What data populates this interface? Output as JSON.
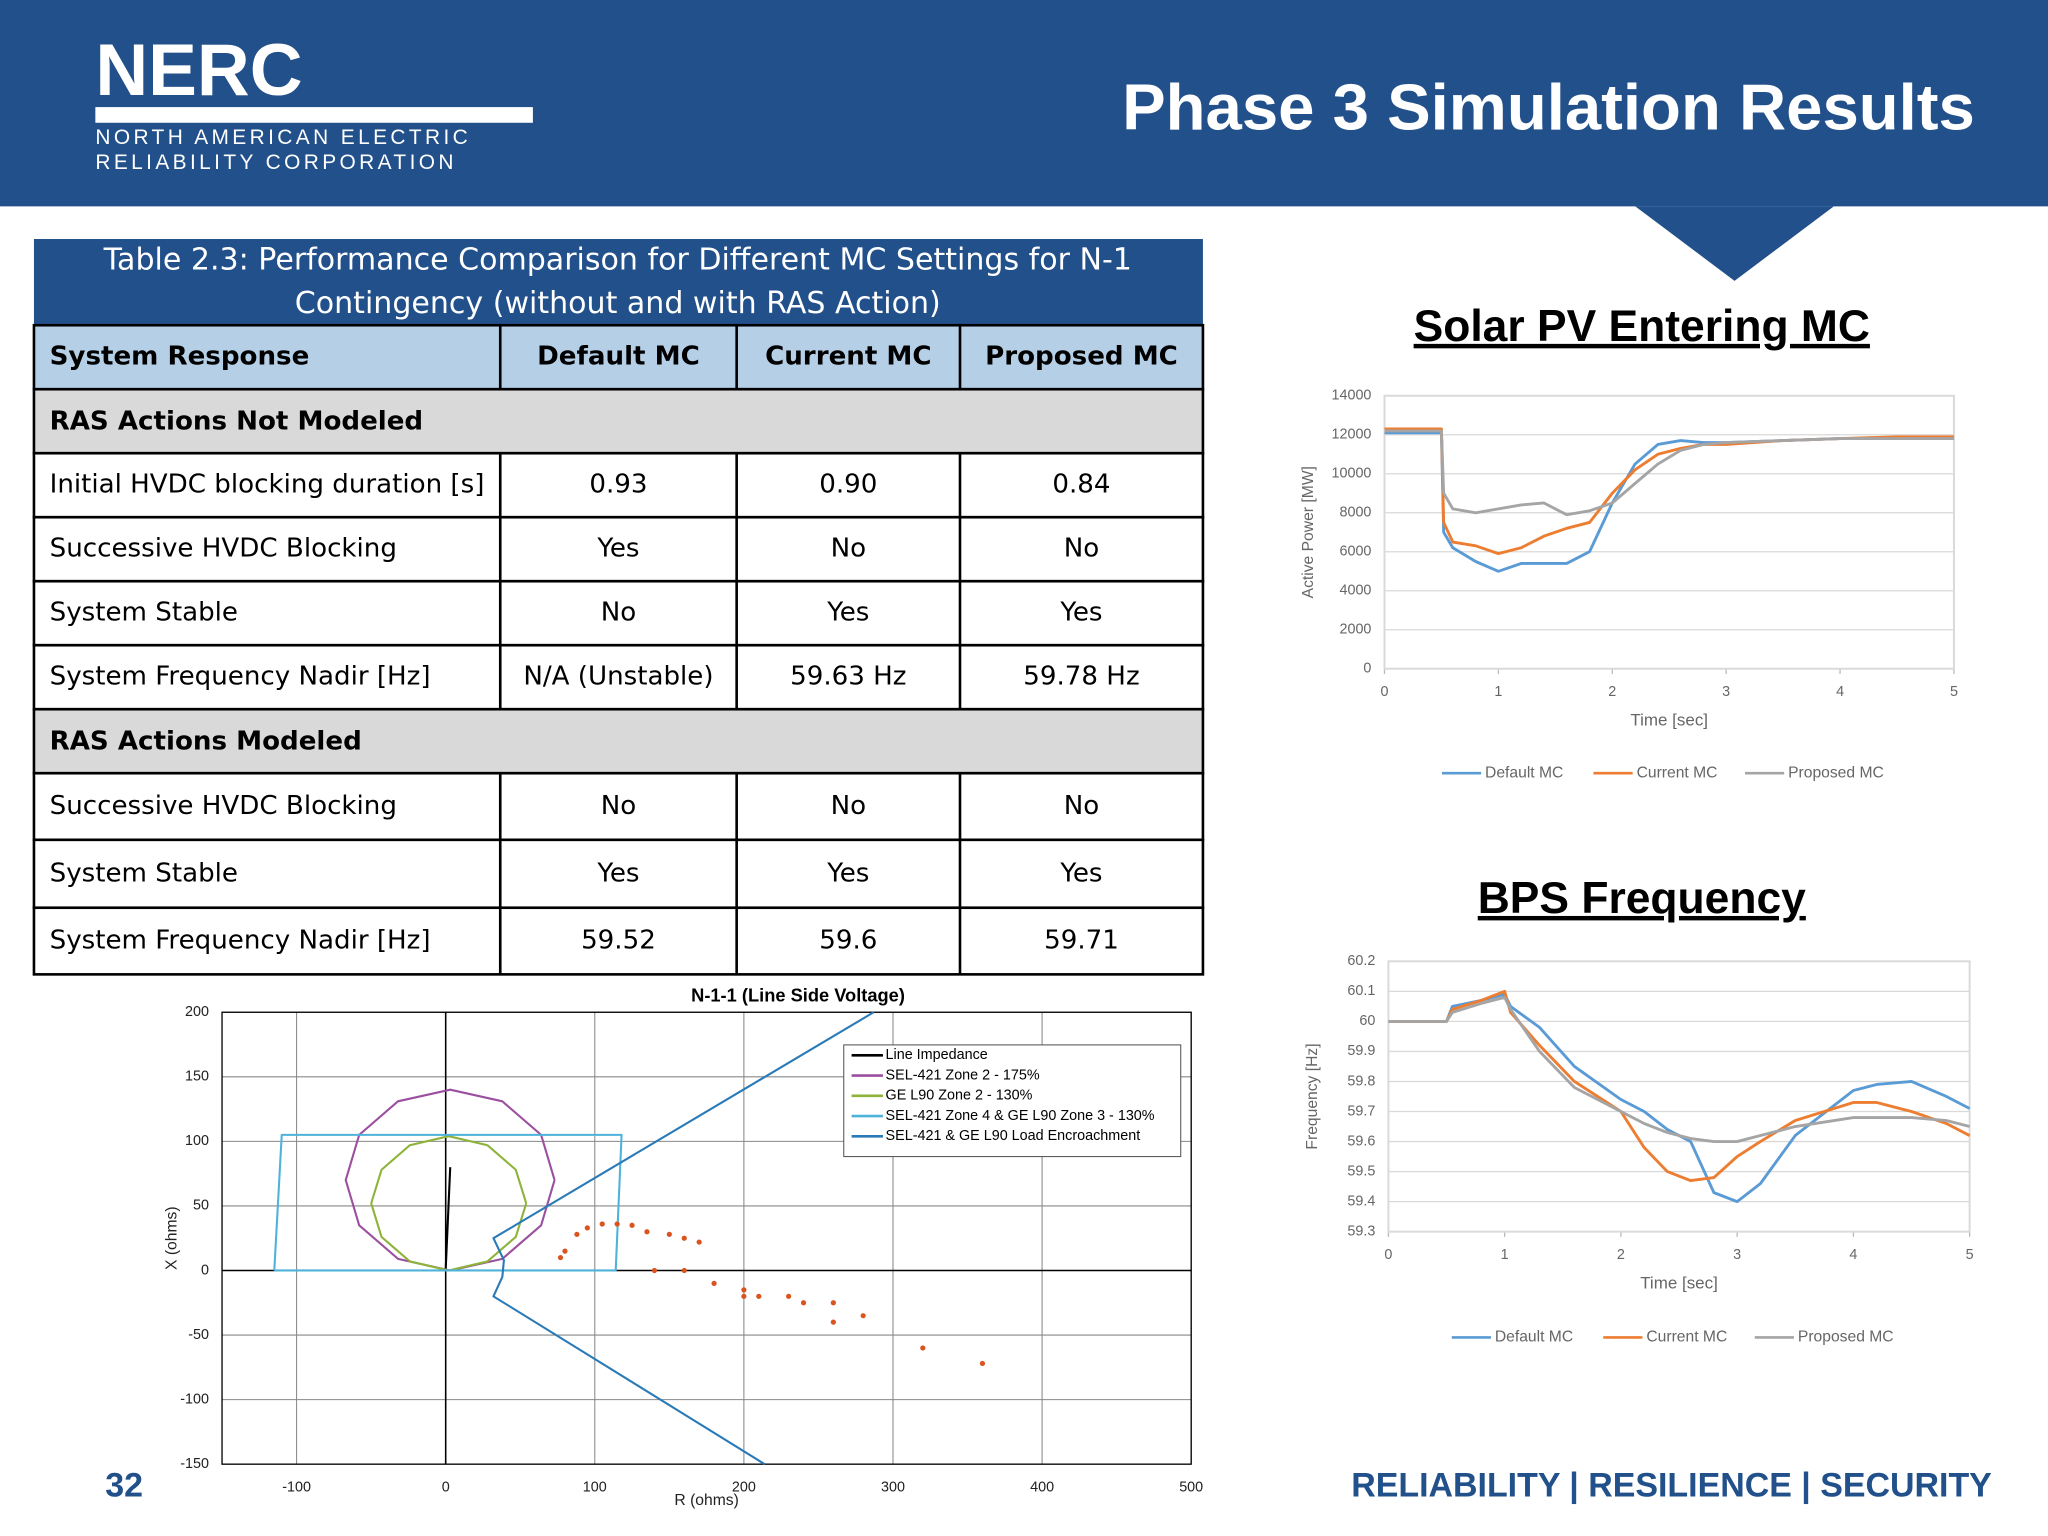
{
  "header": {
    "logo": "NERC",
    "org_line1": "NORTH AMERICAN ELECTRIC",
    "org_line2": "RELIABILITY CORPORATION",
    "title": "Phase 3 Simulation Results"
  },
  "table": {
    "caption_line1": "Table 2.3: Performance Comparison for Different MC Settings for N-1",
    "caption_line2": "Contingency (without and with RAS Action)",
    "header": [
      "System Response",
      "Default MC",
      "Current MC",
      "Proposed MC"
    ],
    "sections": [
      {
        "title": "RAS Actions Not Modeled",
        "rows": [
          [
            "Initial HVDC blocking duration [s]",
            "0.93",
            "0.90",
            "0.84"
          ],
          [
            "Successive HVDC Blocking",
            "Yes",
            "No",
            "No"
          ],
          [
            "System Stable",
            "No",
            "Yes",
            "Yes"
          ],
          [
            "System Frequency Nadir [Hz]",
            "N/A (Unstable)",
            "59.63 Hz",
            "59.78 Hz"
          ]
        ]
      },
      {
        "title": "RAS Actions Modeled",
        "rows": [
          [
            "Successive HVDC Blocking",
            "No",
            "No",
            "No"
          ],
          [
            "System Stable",
            "Yes",
            "Yes",
            "Yes"
          ],
          [
            "System Frequency Nadir [Hz]",
            "59.52",
            "59.6",
            "59.71"
          ]
        ]
      }
    ]
  },
  "chart_data": [
    {
      "type": "line",
      "title": "Solar PV Entering MC",
      "xlabel": "Time [sec]",
      "ylabel": "Active Power [MW]",
      "x": [
        0,
        0.5,
        0.52,
        0.6,
        0.8,
        1.0,
        1.2,
        1.4,
        1.6,
        1.8,
        2.0,
        2.2,
        2.4,
        2.6,
        2.8,
        3.0,
        3.5,
        4.0,
        4.5,
        5.0
      ],
      "series": [
        {
          "name": "Default MC",
          "color": "#5b9bd5",
          "values": [
            12100,
            12100,
            7000,
            6200,
            5500,
            5000,
            5400,
            5400,
            5400,
            6000,
            8500,
            10500,
            11500,
            11700,
            11600,
            11600,
            11700,
            11800,
            11800,
            11800
          ]
        },
        {
          "name": "Current MC",
          "color": "#ed7d31",
          "values": [
            12300,
            12300,
            7500,
            6500,
            6300,
            5900,
            6200,
            6800,
            7200,
            7500,
            9000,
            10200,
            11000,
            11300,
            11500,
            11500,
            11700,
            11800,
            11900,
            11900
          ]
        },
        {
          "name": "Proposed MC",
          "color": "#a5a5a5",
          "values": [
            12200,
            12200,
            9000,
            8200,
            8000,
            8200,
            8400,
            8500,
            7900,
            8100,
            8500,
            9500,
            10500,
            11200,
            11500,
            11600,
            11700,
            11800,
            11800,
            11800
          ]
        }
      ],
      "xlim": [
        0,
        5
      ],
      "xticks": [
        0,
        1,
        2,
        3,
        4,
        5
      ],
      "ylim": [
        0,
        14000
      ],
      "yticks": [
        0,
        2000,
        4000,
        6000,
        8000,
        10000,
        12000,
        14000
      ],
      "grid": true,
      "legend": "bottom"
    },
    {
      "type": "line",
      "title": "BPS Frequency",
      "xlabel": "Time [sec]",
      "ylabel": "Frequency [Hz]",
      "x": [
        0,
        0.5,
        0.55,
        0.8,
        1.0,
        1.05,
        1.3,
        1.6,
        2.0,
        2.2,
        2.4,
        2.6,
        2.8,
        3.0,
        3.2,
        3.5,
        4.0,
        4.2,
        4.5,
        4.8,
        5.0
      ],
      "series": [
        {
          "name": "Default MC",
          "color": "#5b9bd5",
          "values": [
            60,
            60,
            60.05,
            60.07,
            60.09,
            60.05,
            59.98,
            59.85,
            59.74,
            59.7,
            59.64,
            59.6,
            59.43,
            59.4,
            59.46,
            59.62,
            59.77,
            59.79,
            59.8,
            59.75,
            59.71
          ]
        },
        {
          "name": "Current MC",
          "color": "#ed7d31",
          "values": [
            60,
            60,
            60.04,
            60.07,
            60.1,
            60.03,
            59.92,
            59.8,
            59.7,
            59.58,
            59.5,
            59.47,
            59.48,
            59.55,
            59.6,
            59.67,
            59.73,
            59.73,
            59.7,
            59.66,
            59.62
          ]
        },
        {
          "name": "Proposed MC",
          "color": "#a5a5a5",
          "values": [
            60,
            60,
            60.03,
            60.06,
            60.08,
            60.04,
            59.9,
            59.78,
            59.7,
            59.66,
            59.63,
            59.61,
            59.6,
            59.6,
            59.62,
            59.65,
            59.68,
            59.68,
            59.68,
            59.67,
            59.65
          ]
        }
      ],
      "xlim": [
        0,
        5
      ],
      "xticks": [
        0,
        1,
        2,
        3,
        4,
        5
      ],
      "ylim": [
        59.3,
        60.2
      ],
      "yticks": [
        59.3,
        59.4,
        59.5,
        59.6,
        59.7,
        59.8,
        59.9,
        60,
        60.1,
        60.2
      ],
      "grid": true,
      "legend": "bottom"
    },
    {
      "type": "scatter",
      "title": "N-1-1 (Line Side Voltage)",
      "xlabel": "R (ohms)",
      "ylabel": "X (ohms)",
      "series": [
        {
          "name": "Line Impedance",
          "color": "#000000",
          "mode": "line",
          "x": [
            0,
            3
          ],
          "values": [
            0,
            80
          ]
        },
        {
          "name": "SEL-421 Zone 2 - 175%",
          "color": "#9b4f9f",
          "mode": "line",
          "x": [
            73,
            64,
            38,
            3,
            -32,
            -58,
            -67,
            -58,
            -32,
            3,
            38,
            64,
            73
          ],
          "values": [
            70,
            105,
            131,
            140,
            131,
            105,
            70,
            35,
            9,
            0,
            9,
            35,
            70
          ]
        },
        {
          "name": "GE L90 Zone 2 - 130%",
          "color": "#8db33a",
          "mode": "line",
          "x": [
            54,
            47,
            28,
            2,
            -24,
            -43,
            -50,
            -43,
            -24,
            2,
            28,
            47,
            54
          ],
          "values": [
            52,
            78,
            97,
            104,
            97,
            78,
            52,
            26,
            7,
            0,
            7,
            26,
            52
          ]
        },
        {
          "name": "SEL-421 Zone 4 & GE L90 Zone 3 - 130%",
          "color": "#4fb3d9",
          "mode": "line",
          "x": [
            -115,
            -110,
            118,
            114,
            -115
          ],
          "values": [
            0,
            105,
            105,
            0,
            0
          ]
        },
        {
          "name": "SEL-421 & GE L90 Load Encroachment",
          "color": "#2a7ab8",
          "mode": "line",
          "x": [
            287,
            32,
            39,
            38,
            32,
            214
          ],
          "values": [
            200,
            25,
            8,
            -5,
            -20,
            -150
          ]
        },
        {
          "color": "#d9541e",
          "mode": "markers",
          "x": [
            77,
            80,
            88,
            95,
            105,
            115,
            125,
            135,
            150,
            160,
            170,
            160,
            180,
            200,
            210,
            230,
            240,
            260,
            280,
            140,
            200,
            260,
            320,
            360
          ],
          "values": [
            10,
            15,
            28,
            33,
            36,
            36,
            35,
            30,
            28,
            25,
            22,
            0,
            -10,
            -15,
            -20,
            -20,
            -25,
            -25,
            -35,
            0,
            -20,
            -40,
            -60,
            -72
          ]
        }
      ],
      "xlim": [
        -150,
        500
      ],
      "xticks": [
        -100,
        0,
        100,
        200,
        300,
        400,
        500
      ],
      "ylim": [
        -150,
        200
      ],
      "yticks": [
        -150,
        -100,
        -50,
        0,
        50,
        100,
        150,
        200
      ],
      "grid": true,
      "legend": "upper right"
    }
  ],
  "footer": {
    "page": "32",
    "tagline": "RELIABILITY | RESILIENCE | SECURITY"
  }
}
